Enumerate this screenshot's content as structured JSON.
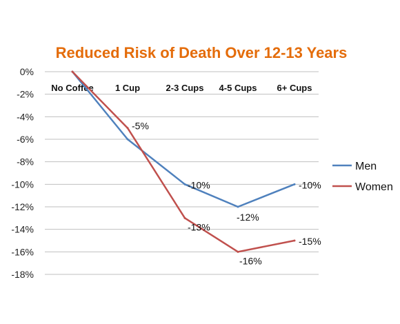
{
  "chart_data": {
    "type": "line",
    "title": "Reduced Risk of Death Over 12-13 Years",
    "title_color": "#E46C0A",
    "categories": [
      "No Coffee",
      "1 Cup",
      "2-3 Cups",
      "4-5 Cups",
      "6+ Cups"
    ],
    "y_ticks": [
      "0%",
      "-2%",
      "-4%",
      "-6%",
      "-8%",
      "-10%",
      "-12%",
      "-14%",
      "-16%",
      "-18%"
    ],
    "ylim": [
      -18,
      0
    ],
    "grid": true,
    "legend_position": "right",
    "series": [
      {
        "name": "Men",
        "color": "#4F81BD",
        "values": [
          0,
          -6,
          -10,
          -12,
          -10
        ],
        "labels": [
          "",
          "",
          "-10%",
          "-12%",
          "-10%"
        ]
      },
      {
        "name": "Women",
        "color": "#C0504D",
        "values": [
          0,
          -5,
          -13,
          -16,
          -15
        ],
        "labels": [
          "",
          "-5%",
          "-13%",
          "-16%",
          "-15%"
        ]
      }
    ]
  }
}
